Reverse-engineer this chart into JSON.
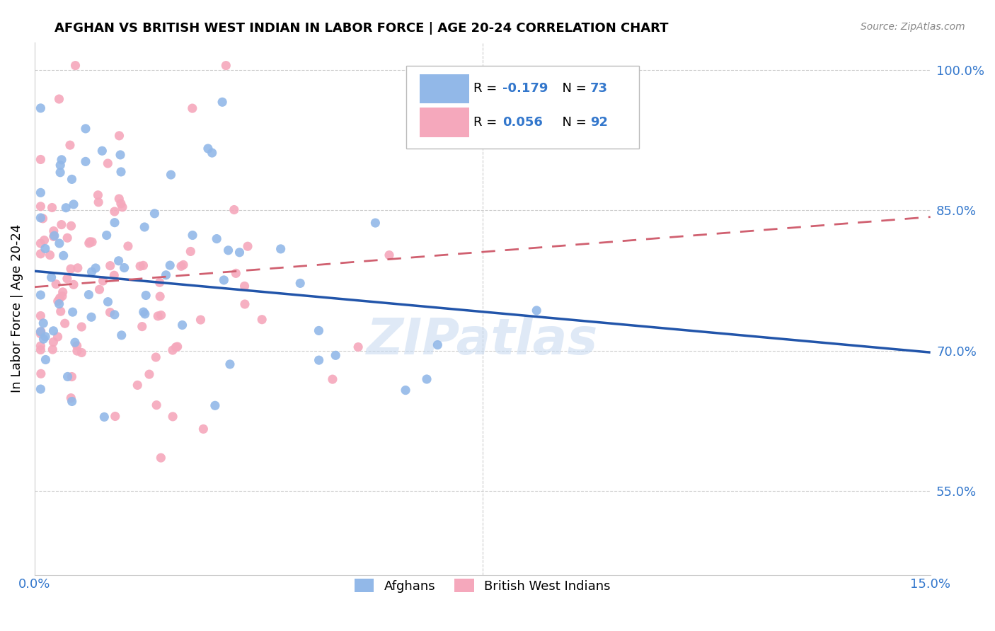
{
  "title": "AFGHAN VS BRITISH WEST INDIAN IN LABOR FORCE | AGE 20-24 CORRELATION CHART",
  "source": "Source: ZipAtlas.com",
  "ylabel": "In Labor Force | Age 20-24",
  "xmin": 0.0,
  "xmax": 0.15,
  "ymin": 0.46,
  "ymax": 1.03,
  "yticks": [
    0.55,
    0.7,
    0.85,
    1.0
  ],
  "ytick_labels": [
    "55.0%",
    "70.0%",
    "85.0%",
    "100.0%"
  ],
  "xtick_labels_show": [
    "0.0%",
    "15.0%"
  ],
  "afghan_R": -0.179,
  "afghan_N": 73,
  "bwi_R": 0.056,
  "bwi_N": 92,
  "afghan_color": "#92b8e8",
  "bwi_color": "#f5a8bc",
  "afghan_line_color": "#2255aa",
  "bwi_line_color": "#d06070",
  "legend_label_afghan": "Afghans",
  "legend_label_bwi": "British West Indians",
  "watermark": "ZIPatlas",
  "afghan_line_y0": 0.785,
  "afghan_line_y1": 0.698,
  "bwi_line_y0": 0.768,
  "bwi_line_y1": 0.843
}
